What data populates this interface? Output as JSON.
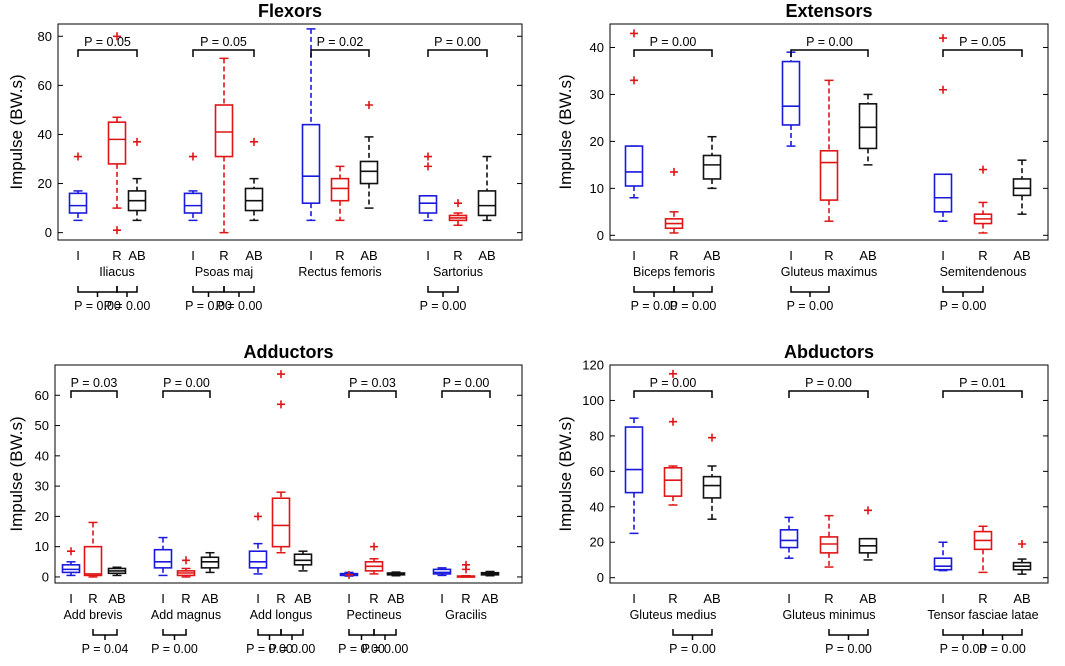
{
  "figure": {
    "ylabel": "Impulse (BW.s)",
    "sub_labels": [
      "I",
      "R",
      "AB"
    ]
  },
  "colors": {
    "I": "#1a1adc",
    "R": "#e01515",
    "AB": "#111111"
  },
  "chart_data": [
    {
      "type": "boxplot",
      "title": "Flexors",
      "ylabel": "Impulse (BW.s)",
      "ylim": [
        -3,
        85
      ],
      "yticks": [
        "0",
        "20",
        "40",
        "60",
        "80"
      ],
      "categories": [
        "Iliacus",
        "Psoas maj",
        "Rectus femoris",
        "Sartorius"
      ],
      "series": [
        "I",
        "R",
        "AB"
      ],
      "groups": [
        {
          "muscle": "Iliacus",
          "boxes": [
            {
              "s": "I",
              "min": 5,
              "q1": 8,
              "med": 11,
              "q3": 16,
              "max": 17,
              "out": [
                31
              ]
            },
            {
              "s": "R",
              "min": 10,
              "q1": 28,
              "med": 38,
              "q3": 45,
              "max": 47,
              "out": [
                1,
                80
              ]
            },
            {
              "s": "AB",
              "min": 5,
              "q1": 9,
              "med": 13,
              "q3": 17,
              "max": 22,
              "out": [
                37
              ]
            }
          ],
          "top": "P = 0.05",
          "bottom": [
            "P = 0.00",
            "P = 0.00"
          ]
        },
        {
          "muscle": "Psoas maj",
          "boxes": [
            {
              "s": "I",
              "min": 5,
              "q1": 8,
              "med": 11,
              "q3": 16,
              "max": 17,
              "out": [
                31
              ]
            },
            {
              "s": "R",
              "min": 0,
              "q1": 31,
              "med": 41,
              "q3": 52,
              "max": 71,
              "out": []
            },
            {
              "s": "AB",
              "min": 5,
              "q1": 9,
              "med": 13,
              "q3": 18,
              "max": 22,
              "out": [
                37
              ]
            }
          ],
          "top": "P = 0.05",
          "bottom": [
            "P = 0.00",
            "P = 0.00"
          ]
        },
        {
          "muscle": "Rectus femoris",
          "boxes": [
            {
              "s": "I",
              "min": 5,
              "q1": 12,
              "med": 23,
              "q3": 44,
              "max": 83,
              "out": []
            },
            {
              "s": "R",
              "min": 5,
              "q1": 13,
              "med": 18,
              "q3": 22,
              "max": 27,
              "out": []
            },
            {
              "s": "AB",
              "min": 10,
              "q1": 20,
              "med": 25,
              "q3": 29,
              "max": 39,
              "out": [
                52
              ]
            }
          ],
          "top": "P = 0.02",
          "bottom": []
        },
        {
          "muscle": "Sartorius",
          "boxes": [
            {
              "s": "I",
              "min": 5,
              "q1": 8,
              "med": 12,
              "q3": 15,
              "max": 15,
              "out": [
                27,
                31
              ]
            },
            {
              "s": "R",
              "min": 3,
              "q1": 5,
              "med": 6,
              "q3": 7,
              "max": 8,
              "out": [
                12
              ]
            },
            {
              "s": "AB",
              "min": 5,
              "q1": 7,
              "med": 11,
              "q3": 17,
              "max": 31,
              "out": []
            }
          ],
          "top": "P = 0.00",
          "bottom": [
            "P = 0.00"
          ]
        }
      ]
    },
    {
      "type": "boxplot",
      "title": "Extensors",
      "ylabel": "Impulse (BW.s)",
      "ylim": [
        -1,
        45
      ],
      "yticks": [
        "0",
        "10",
        "20",
        "30",
        "40"
      ],
      "categories": [
        "Biceps femoris",
        "Gluteus maximus",
        "Semitendenous"
      ],
      "series": [
        "I",
        "R",
        "AB"
      ],
      "groups": [
        {
          "muscle": "Biceps femoris",
          "boxes": [
            {
              "s": "I",
              "min": 8,
              "q1": 10.5,
              "med": 13.5,
              "q3": 19,
              "max": 19,
              "out": [
                33,
                43
              ]
            },
            {
              "s": "R",
              "min": 0.5,
              "q1": 1.5,
              "med": 2.5,
              "q3": 3.5,
              "max": 5,
              "out": [
                13.5
              ]
            },
            {
              "s": "AB",
              "min": 10,
              "q1": 12,
              "med": 15,
              "q3": 17,
              "max": 21,
              "out": []
            }
          ],
          "top": "P = 0.00",
          "bottom": [
            "P = 0.00",
            "P = 0.00"
          ]
        },
        {
          "muscle": "Gluteus maximus",
          "boxes": [
            {
              "s": "I",
              "min": 19,
              "q1": 23.5,
              "med": 27.5,
              "q3": 37,
              "max": 39,
              "out": []
            },
            {
              "s": "R",
              "min": 3,
              "q1": 7.5,
              "med": 15.5,
              "q3": 18,
              "max": 33,
              "out": []
            },
            {
              "s": "AB",
              "min": 15,
              "q1": 18.5,
              "med": 23,
              "q3": 28,
              "max": 30,
              "out": []
            }
          ],
          "top": "P = 0.00",
          "bottom": [
            "P = 0.00"
          ]
        },
        {
          "muscle": "Semitendenous",
          "boxes": [
            {
              "s": "I",
              "min": 3,
              "q1": 5,
              "med": 8,
              "q3": 13,
              "max": 13,
              "out": [
                31,
                42
              ]
            },
            {
              "s": "R",
              "min": 0.5,
              "q1": 2.5,
              "med": 3.5,
              "q3": 4.5,
              "max": 7,
              "out": [
                14
              ]
            },
            {
              "s": "AB",
              "min": 4.5,
              "q1": 8.5,
              "med": 10,
              "q3": 12,
              "max": 16,
              "out": []
            }
          ],
          "top": "P = 0.05",
          "bottom": [
            "P = 0.00"
          ]
        }
      ]
    },
    {
      "type": "boxplot",
      "title": "Adductors",
      "ylabel": "Impulse (BW.s)",
      "ylim": [
        -2,
        70
      ],
      "yticks": [
        "0",
        "10",
        "20",
        "30",
        "40",
        "50",
        "60"
      ],
      "categories": [
        "Add brevis",
        "Add magnus",
        "Add longus",
        "Pectineus",
        "Gracilis"
      ],
      "series": [
        "I",
        "R",
        "AB"
      ],
      "groups": [
        {
          "muscle": "Add brevis",
          "boxes": [
            {
              "s": "I",
              "min": 0.5,
              "q1": 1.5,
              "med": 2.5,
              "q3": 4,
              "max": 5,
              "out": [
                8.5
              ]
            },
            {
              "s": "R",
              "min": 0,
              "q1": 0.5,
              "med": 1,
              "q3": 10,
              "max": 18,
              "out": []
            },
            {
              "s": "AB",
              "min": 0.5,
              "q1": 1.2,
              "med": 2,
              "q3": 2.8,
              "max": 3.2,
              "out": []
            }
          ],
          "top": "P = 0.03",
          "bottom": [
            "P = 0.04"
          ]
        },
        {
          "muscle": "Add magnus",
          "boxes": [
            {
              "s": "I",
              "min": 0.5,
              "q1": 3,
              "med": 5,
              "q3": 9,
              "max": 13,
              "out": []
            },
            {
              "s": "R",
              "min": 0,
              "q1": 0.5,
              "med": 1.3,
              "q3": 2,
              "max": 2.8,
              "out": [
                5.5
              ]
            },
            {
              "s": "AB",
              "min": 1.5,
              "q1": 3,
              "med": 5,
              "q3": 6.5,
              "max": 8,
              "out": []
            }
          ],
          "top": "P = 0.00",
          "bottom": [
            "P = 0.00"
          ]
        },
        {
          "muscle": "Add longus",
          "boxes": [
            {
              "s": "I",
              "min": 1,
              "q1": 3,
              "med": 5,
              "q3": 8.5,
              "max": 11,
              "out": [
                20
              ]
            },
            {
              "s": "R",
              "min": 8,
              "q1": 10,
              "med": 17,
              "q3": 26,
              "max": 28,
              "out": [
                57,
                67
              ]
            },
            {
              "s": "AB",
              "min": 2,
              "q1": 4,
              "med": 5.5,
              "q3": 7.5,
              "max": 8.5,
              "out": []
            }
          ],
          "top": "",
          "bottom": [
            "P = 0.00",
            "P = 0.00"
          ]
        },
        {
          "muscle": "Pectineus",
          "boxes": [
            {
              "s": "I",
              "min": 0.3,
              "q1": 0.5,
              "med": 0.8,
              "q3": 1.1,
              "max": 1.5,
              "out": [
                0.7
              ]
            },
            {
              "s": "R",
              "min": 1,
              "q1": 2,
              "med": 3.5,
              "q3": 5,
              "max": 6,
              "out": [
                10
              ]
            },
            {
              "s": "AB",
              "min": 0.4,
              "q1": 0.7,
              "med": 1,
              "q3": 1.3,
              "max": 1.6,
              "out": []
            }
          ],
          "top": "P = 0.03",
          "bottom": [
            "P = 0.00",
            "P = 0.00"
          ]
        },
        {
          "muscle": "Gracilis",
          "boxes": [
            {
              "s": "I",
              "min": 0.5,
              "q1": 1,
              "med": 1.5,
              "q3": 2.5,
              "max": 3,
              "out": []
            },
            {
              "s": "R",
              "min": 0,
              "q1": 0.1,
              "med": 0.2,
              "q3": 0.3,
              "max": 0.4,
              "out": [
                2.5,
                4
              ]
            },
            {
              "s": "AB",
              "min": 0.4,
              "q1": 0.7,
              "med": 1,
              "q3": 1.4,
              "max": 1.8,
              "out": []
            }
          ],
          "top": "P = 0.00",
          "bottom": []
        }
      ]
    },
    {
      "type": "boxplot",
      "title": "Abductors",
      "ylabel": "Impulse (BW.s)",
      "ylim": [
        -3,
        120
      ],
      "yticks": [
        "0",
        "20",
        "40",
        "60",
        "80",
        "100",
        "120"
      ],
      "categories": [
        "Gluteus medius",
        "Gluteus minimus",
        "Tensor fasciae latae"
      ],
      "series": [
        "I",
        "R",
        "AB"
      ],
      "groups": [
        {
          "muscle": "Gluteus medius",
          "boxes": [
            {
              "s": "I",
              "min": 25,
              "q1": 48,
              "med": 61,
              "q3": 85,
              "max": 90,
              "out": []
            },
            {
              "s": "R",
              "min": 41,
              "q1": 46,
              "med": 55,
              "q3": 62,
              "max": 63,
              "out": [
                88,
                115
              ]
            },
            {
              "s": "AB",
              "min": 33,
              "q1": 45,
              "med": 52,
              "q3": 57,
              "max": 63,
              "out": [
                79
              ]
            }
          ],
          "top": "P = 0.00",
          "bottom": [
            "P = 0.00"
          ]
        },
        {
          "muscle": "Gluteus minimus",
          "boxes": [
            {
              "s": "I",
              "min": 11,
              "q1": 17,
              "med": 21,
              "q3": 27,
              "max": 34,
              "out": []
            },
            {
              "s": "R",
              "min": 6,
              "q1": 14,
              "med": 19,
              "q3": 23,
              "max": 35,
              "out": []
            },
            {
              "s": "AB",
              "min": 10,
              "q1": 14,
              "med": 18,
              "q3": 22,
              "max": 22,
              "out": [
                38
              ]
            }
          ],
          "top": "P = 0.00",
          "bottom": [
            "P = 0.00"
          ]
        },
        {
          "muscle": "Tensor fasciae latae",
          "boxes": [
            {
              "s": "I",
              "min": 4,
              "q1": 4.5,
              "med": 6.5,
              "q3": 11,
              "max": 20,
              "out": []
            },
            {
              "s": "R",
              "min": 3,
              "q1": 16,
              "med": 21,
              "q3": 26,
              "max": 29,
              "out": []
            },
            {
              "s": "AB",
              "min": 2,
              "q1": 4.5,
              "med": 6.5,
              "q3": 8.5,
              "max": 10.5,
              "out": [
                19
              ]
            }
          ],
          "top": "P = 0.01",
          "bottom": [
            "P = 0.00",
            "P = 0.00"
          ]
        }
      ]
    }
  ]
}
